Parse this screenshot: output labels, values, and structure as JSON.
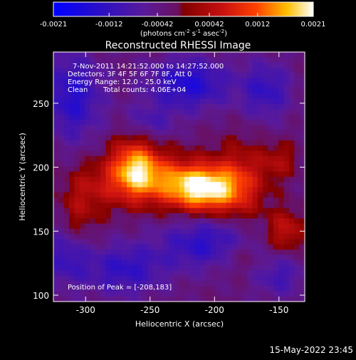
{
  "chart_data": {
    "type": "heatmap",
    "title": "Reconstructed RHESSI Image",
    "xlabel": "Heliocentric X (arcsec)",
    "ylabel": "Heliocentric Y (arcsec)",
    "xlim": [
      -325,
      -130
    ],
    "ylim": [
      95,
      290
    ],
    "xticks": [
      -300,
      -250,
      -200,
      -150
    ],
    "yticks": [
      100,
      150,
      200,
      250
    ],
    "colorbar": {
      "ticks": [
        "-0.0021",
        "-0.0012",
        "-0.00042",
        "0.00042",
        "0.0012",
        "0.0021"
      ],
      "range": [
        -0.0021,
        0.0021
      ],
      "unit_label": "(photons cm",
      "unit_sup1": "-2",
      "unit_mid1": " s",
      "unit_sup2": "-1",
      "unit_mid2": " asec",
      "unit_sup3": "-2",
      "unit_end": ")"
    },
    "annotations": {
      "time_range": "7-Nov-2011 14:21:52.000 to 14:27:52.000",
      "detectors": "Detectors: 3F 4F 5F 6F 7F 8F, Att 0",
      "energy_range": "Energy Range: 12.0 - 25.0 keV",
      "method": "Clean",
      "total_counts": "Total counts: 4.06E+04",
      "peak": "Position of Peak = [-208,183]"
    },
    "sources": [
      {
        "x": -208,
        "y": 183,
        "amp": 0.0021,
        "sx": 18,
        "sy": 12
      },
      {
        "x": -262,
        "y": 200,
        "amp": 0.00165,
        "sx": 13,
        "sy": 16
      },
      {
        "x": -240,
        "y": 190,
        "amp": 0.00115,
        "sx": 26,
        "sy": 14
      },
      {
        "x": -180,
        "y": 188,
        "amp": 0.0009,
        "sx": 14,
        "sy": 22
      },
      {
        "x": -295,
        "y": 185,
        "amp": 0.00055,
        "sx": 16,
        "sy": 14
      },
      {
        "x": -145,
        "y": 150,
        "amp": 0.0009,
        "sx": 10,
        "sy": 12
      },
      {
        "x": -150,
        "y": 205,
        "amp": 0.0006,
        "sx": 10,
        "sy": 10
      },
      {
        "x": -305,
        "y": 160,
        "amp": 0.0005,
        "sx": 10,
        "sy": 16
      },
      {
        "x": -180,
        "y": 130,
        "amp": 0.00045,
        "sx": 14,
        "sy": 10
      },
      {
        "x": -310,
        "y": 255,
        "amp": -0.0011,
        "sx": 16,
        "sy": 24
      },
      {
        "x": -220,
        "y": 265,
        "amp": -0.0012,
        "sx": 22,
        "sy": 14
      },
      {
        "x": -160,
        "y": 260,
        "amp": -0.0009,
        "sx": 14,
        "sy": 16
      },
      {
        "x": -205,
        "y": 140,
        "amp": -0.00105,
        "sx": 26,
        "sy": 14
      },
      {
        "x": -270,
        "y": 120,
        "amp": -0.00095,
        "sx": 22,
        "sy": 14
      },
      {
        "x": -315,
        "y": 130,
        "amp": -0.0008,
        "sx": 12,
        "sy": 16
      },
      {
        "x": -150,
        "y": 115,
        "amp": -0.0007,
        "sx": 14,
        "sy": 12
      },
      {
        "x": -250,
        "y": 235,
        "amp": -0.0006,
        "sx": 14,
        "sy": 10
      }
    ]
  },
  "footer": {
    "date": "15-May-2022 23:45"
  }
}
